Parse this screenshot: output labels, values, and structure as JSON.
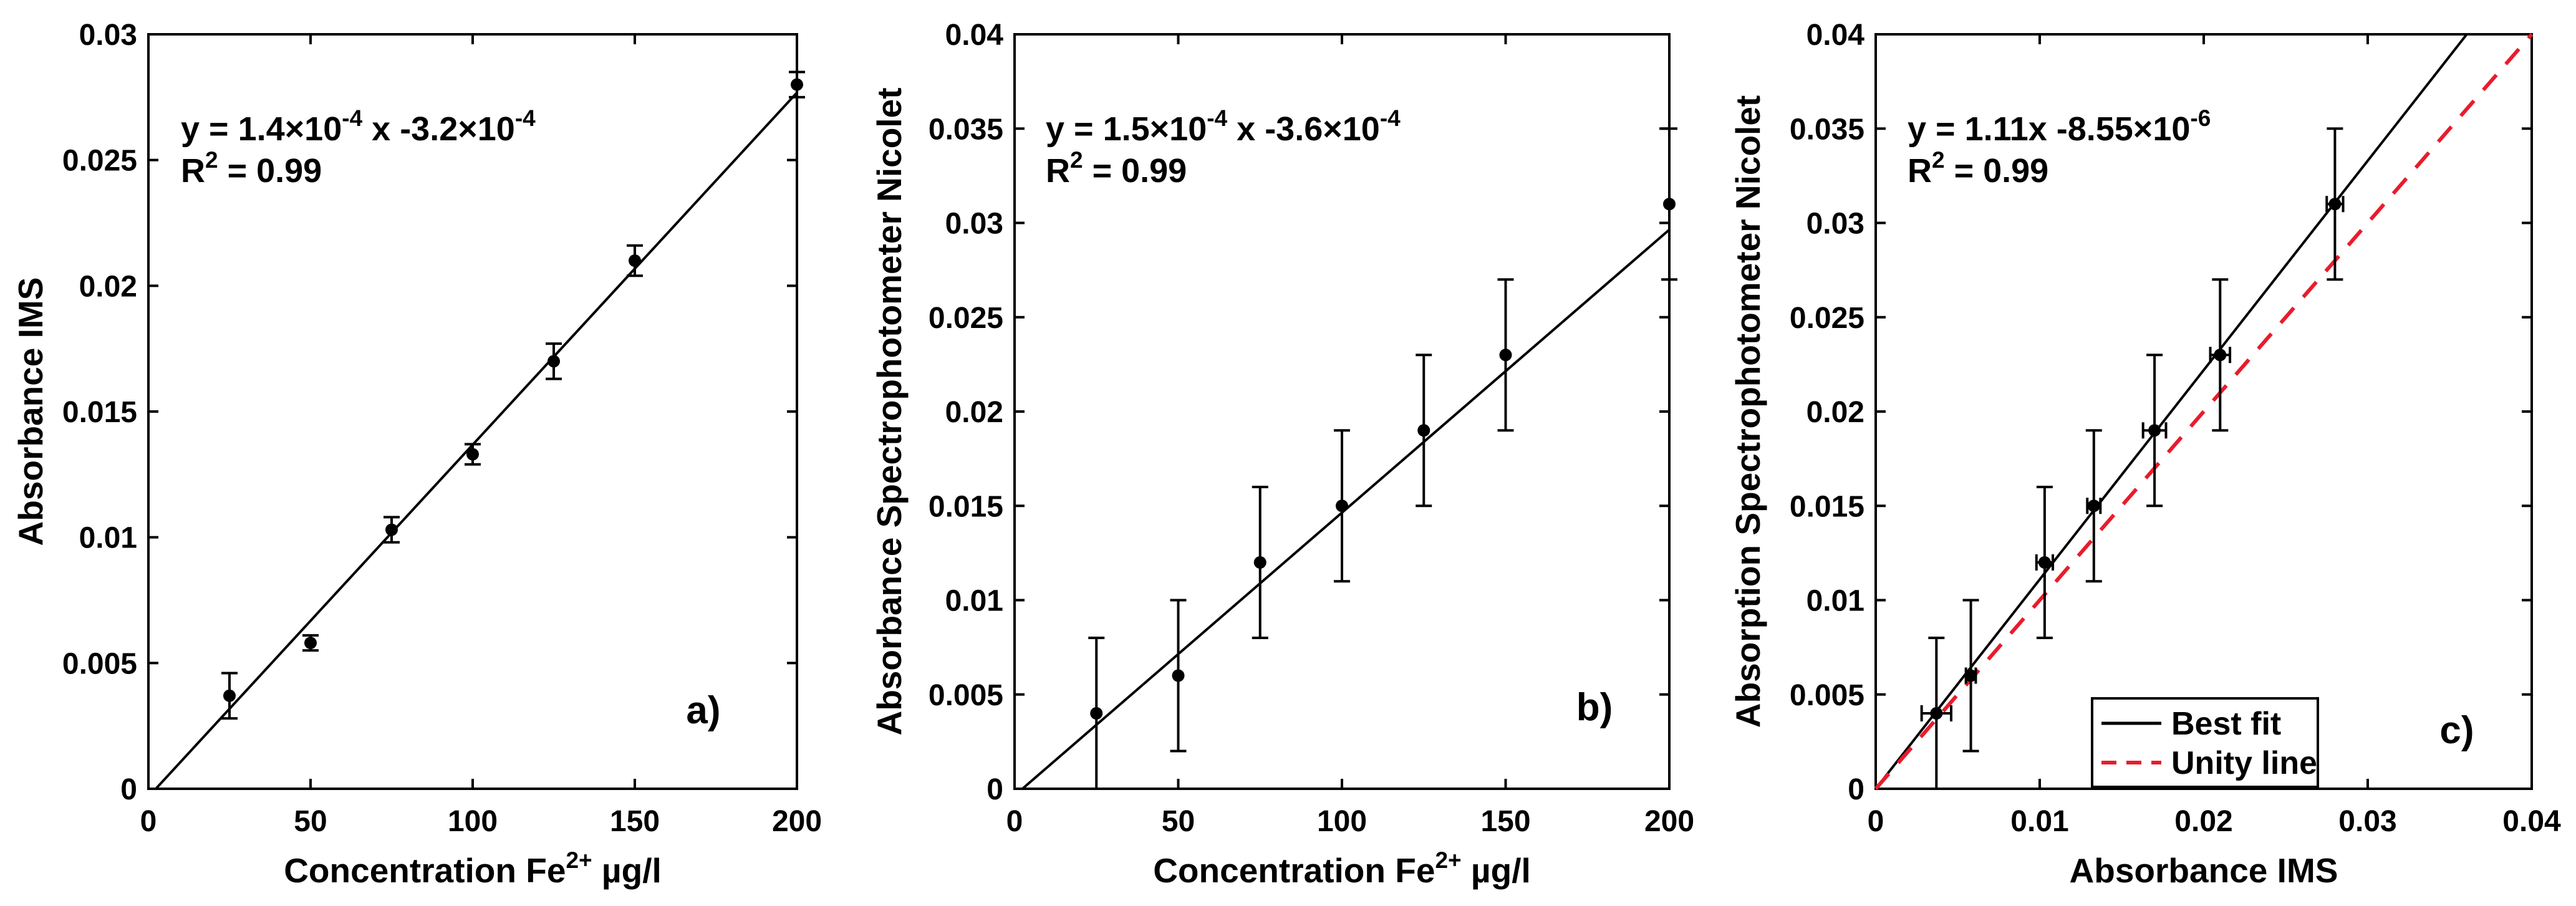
{
  "figure": {
    "background": "#ffffff",
    "axis_color": "#000000",
    "data_color": "#000000",
    "unity_line_color": "#e81c2c"
  },
  "chart_data": [
    {
      "type": "scatter",
      "panel_label": "a)",
      "ylabel": "Absorbance IMS",
      "xlabel_parts": [
        {
          "t": "Concentration Fe"
        },
        {
          "t": "2+",
          "sup": true
        },
        {
          "t": " µg/l"
        }
      ],
      "annotation_line1_parts": [
        {
          "t": "y = 1.4×10"
        },
        {
          "t": "-4",
          "sup": true
        },
        {
          "t": " x -3.2×10"
        },
        {
          "t": "-4",
          "sup": true
        }
      ],
      "annotation_line2_parts": [
        {
          "t": "R"
        },
        {
          "t": "2",
          "sup": true
        },
        {
          "t": " = 0.99"
        }
      ],
      "xlim": [
        0,
        200
      ],
      "ylim": [
        0,
        0.03
      ],
      "xticks": [
        0,
        50,
        100,
        150,
        200
      ],
      "xtick_labels": [
        "0",
        "50",
        "100",
        "150",
        "200"
      ],
      "yticks": [
        0,
        0.005,
        0.01,
        0.015,
        0.02,
        0.025,
        0.03
      ],
      "ytick_labels": [
        "0",
        "0.005",
        "0.01",
        "0.015",
        "0.02",
        "0.025",
        "0.03"
      ],
      "points": {
        "x": [
          25,
          50,
          75,
          100,
          125,
          150,
          200
        ],
        "y": [
          0.0037,
          0.0058,
          0.0103,
          0.0133,
          0.017,
          0.021,
          0.028
        ],
        "yerr": [
          0.0009,
          0.0003,
          0.0005,
          0.0004,
          0.0007,
          0.0006,
          0.0005
        ]
      },
      "fit_line": {
        "x": [
          2.29,
          200
        ],
        "y": [
          0,
          0.02768
        ]
      },
      "grid": false,
      "legend": null
    },
    {
      "type": "scatter",
      "panel_label": "b)",
      "ylabel": "Absorbance Spectrophotometer Nicolet",
      "xlabel_parts": [
        {
          "t": "Concentration Fe"
        },
        {
          "t": "2+",
          "sup": true
        },
        {
          "t": " µg/l"
        }
      ],
      "annotation_line1_parts": [
        {
          "t": "y = 1.5×10"
        },
        {
          "t": "-4",
          "sup": true
        },
        {
          "t": " x -3.6×10"
        },
        {
          "t": "-4",
          "sup": true
        }
      ],
      "annotation_line2_parts": [
        {
          "t": "R"
        },
        {
          "t": "2",
          "sup": true
        },
        {
          "t": " = 0.99"
        }
      ],
      "xlim": [
        0,
        200
      ],
      "ylim": [
        0,
        0.04
      ],
      "xticks": [
        0,
        50,
        100,
        150,
        200
      ],
      "xtick_labels": [
        "0",
        "50",
        "100",
        "150",
        "200"
      ],
      "yticks": [
        0,
        0.005,
        0.01,
        0.015,
        0.02,
        0.025,
        0.03,
        0.035,
        0.04
      ],
      "ytick_labels": [
        "0",
        "0.005",
        "0.01",
        "0.015",
        "0.02",
        "0.025",
        "0.03",
        "0.035",
        "0.04"
      ],
      "points": {
        "x": [
          25,
          50,
          75,
          100,
          125,
          150,
          200
        ],
        "y": [
          0.004,
          0.006,
          0.012,
          0.015,
          0.019,
          0.023,
          0.031
        ],
        "yerr": [
          0.004,
          0.004,
          0.004,
          0.004,
          0.004,
          0.004,
          0.004
        ]
      },
      "fit_line": {
        "x": [
          2.4,
          200
        ],
        "y": [
          0,
          0.02964
        ]
      },
      "grid": false,
      "legend": null
    },
    {
      "type": "scatter",
      "panel_label": "c)",
      "ylabel": "Absorption Spectrophotometer Nicolet",
      "xlabel_parts": [
        {
          "t": "Absorbance IMS"
        }
      ],
      "annotation_line1_parts": [
        {
          "t": "y = 1.11x -8.55×10"
        },
        {
          "t": "-6",
          "sup": true
        }
      ],
      "annotation_line2_parts": [
        {
          "t": "R"
        },
        {
          "t": "2",
          "sup": true
        },
        {
          "t": " = 0.99"
        }
      ],
      "xlim": [
        0,
        0.04
      ],
      "ylim": [
        0,
        0.04
      ],
      "xticks": [
        0,
        0.01,
        0.02,
        0.03,
        0.04
      ],
      "xtick_labels": [
        "0",
        "0.01",
        "0.02",
        "0.03",
        "0.04"
      ],
      "yticks": [
        0,
        0.005,
        0.01,
        0.015,
        0.02,
        0.025,
        0.03,
        0.035,
        0.04
      ],
      "ytick_labels": [
        "0",
        "0.005",
        "0.01",
        "0.015",
        "0.02",
        "0.025",
        "0.03",
        "0.035",
        "0.04"
      ],
      "points": {
        "x": [
          0.0037,
          0.0058,
          0.0103,
          0.0133,
          0.017,
          0.021,
          0.028
        ],
        "y": [
          0.004,
          0.006,
          0.012,
          0.015,
          0.019,
          0.023,
          0.031
        ],
        "xerr": [
          0.0009,
          0.0003,
          0.0005,
          0.0004,
          0.0007,
          0.0006,
          0.0005
        ],
        "yerr": [
          0.004,
          0.004,
          0.004,
          0.004,
          0.004,
          0.004,
          0.004
        ]
      },
      "best_fit_line": {
        "x": [
          0,
          0.03604
        ],
        "y": [
          0,
          0.04
        ]
      },
      "unity_line": {
        "x": [
          0,
          0.04
        ],
        "y": [
          0,
          0.04
        ]
      },
      "grid": false,
      "legend": {
        "position": "bottom-center",
        "items": [
          {
            "label": "Best fit",
            "color": "#000000",
            "dashed": false
          },
          {
            "label": "Unity line",
            "color": "#e81c2c",
            "dashed": true
          }
        ]
      }
    }
  ]
}
